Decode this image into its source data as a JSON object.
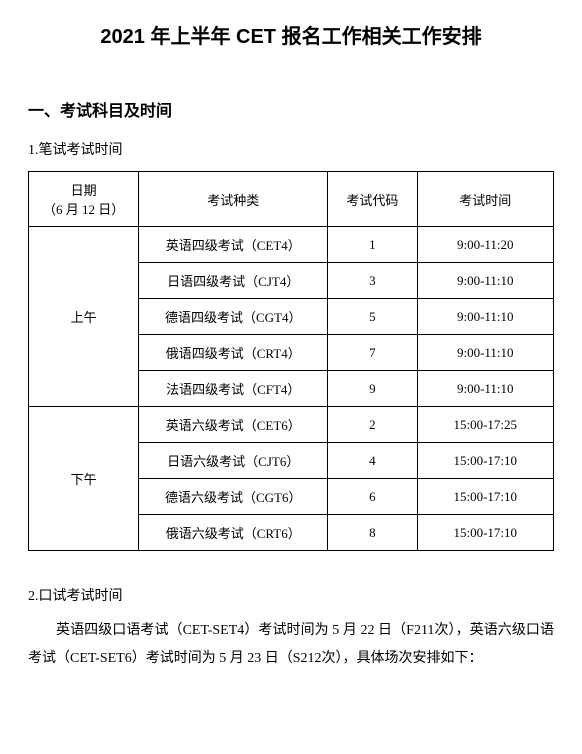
{
  "title": "2021 年上半年 CET 报名工作相关工作安排",
  "section1": {
    "heading": "一、考试科目及时间",
    "written": {
      "label": "1.笔试考试时间",
      "table": {
        "headers": {
          "date_line1": "日期",
          "date_line2": "（6 月 12 日）",
          "type": "考试种类",
          "code": "考试代码",
          "time": "考试时间"
        },
        "sessions": [
          {
            "period": "上午",
            "rows": [
              {
                "type": "英语四级考试（CET4）",
                "code": "1",
                "time": "9:00-11:20"
              },
              {
                "type": "日语四级考试（CJT4）",
                "code": "3",
                "time": "9:00-11:10"
              },
              {
                "type": "德语四级考试（CGT4）",
                "code": "5",
                "time": "9:00-11:10"
              },
              {
                "type": "俄语四级考试（CRT4）",
                "code": "7",
                "time": "9:00-11:10"
              },
              {
                "type": "法语四级考试（CFT4）",
                "code": "9",
                "time": "9:00-11:10"
              }
            ]
          },
          {
            "period": "下午",
            "rows": [
              {
                "type": "英语六级考试（CET6）",
                "code": "2",
                "time": "15:00-17:25"
              },
              {
                "type": "日语六级考试（CJT6）",
                "code": "4",
                "time": "15:00-17:10"
              },
              {
                "type": "德语六级考试（CGT6）",
                "code": "6",
                "time": "15:00-17:10"
              },
              {
                "type": "俄语六级考试（CRT6）",
                "code": "8",
                "time": "15:00-17:10"
              }
            ]
          }
        ]
      }
    },
    "oral": {
      "label": "2.口试考试时间",
      "paragraph": "英语四级口语考试（CET-SET4）考试时间为 5 月 22 日（F211次），英语六级口语考试（CET-SET6）考试时间为 5 月 23 日（S212次），具体场次安排如下："
    }
  }
}
